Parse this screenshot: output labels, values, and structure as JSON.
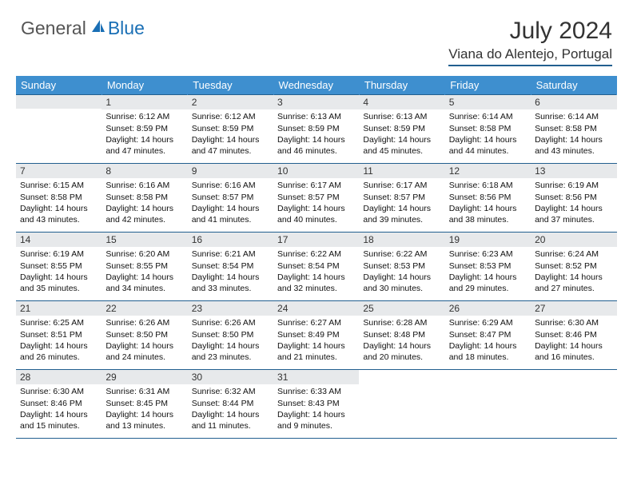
{
  "logo": {
    "part1": "General",
    "part2": "Blue"
  },
  "title": "July 2024",
  "location": "Viana do Alentejo, Portugal",
  "colors": {
    "header_bg": "#3e8fcf",
    "border": "#225f8f",
    "daynum_bg": "#e7e9eb",
    "logo_blue": "#1a6fb5"
  },
  "weekdays": [
    "Sunday",
    "Monday",
    "Tuesday",
    "Wednesday",
    "Thursday",
    "Friday",
    "Saturday"
  ],
  "weeks": [
    [
      null,
      {
        "n": "1",
        "sr": "6:12 AM",
        "ss": "8:59 PM",
        "dl": "14 hours and 47 minutes."
      },
      {
        "n": "2",
        "sr": "6:12 AM",
        "ss": "8:59 PM",
        "dl": "14 hours and 47 minutes."
      },
      {
        "n": "3",
        "sr": "6:13 AM",
        "ss": "8:59 PM",
        "dl": "14 hours and 46 minutes."
      },
      {
        "n": "4",
        "sr": "6:13 AM",
        "ss": "8:59 PM",
        "dl": "14 hours and 45 minutes."
      },
      {
        "n": "5",
        "sr": "6:14 AM",
        "ss": "8:58 PM",
        "dl": "14 hours and 44 minutes."
      },
      {
        "n": "6",
        "sr": "6:14 AM",
        "ss": "8:58 PM",
        "dl": "14 hours and 43 minutes."
      }
    ],
    [
      {
        "n": "7",
        "sr": "6:15 AM",
        "ss": "8:58 PM",
        "dl": "14 hours and 43 minutes."
      },
      {
        "n": "8",
        "sr": "6:16 AM",
        "ss": "8:58 PM",
        "dl": "14 hours and 42 minutes."
      },
      {
        "n": "9",
        "sr": "6:16 AM",
        "ss": "8:57 PM",
        "dl": "14 hours and 41 minutes."
      },
      {
        "n": "10",
        "sr": "6:17 AM",
        "ss": "8:57 PM",
        "dl": "14 hours and 40 minutes."
      },
      {
        "n": "11",
        "sr": "6:17 AM",
        "ss": "8:57 PM",
        "dl": "14 hours and 39 minutes."
      },
      {
        "n": "12",
        "sr": "6:18 AM",
        "ss": "8:56 PM",
        "dl": "14 hours and 38 minutes."
      },
      {
        "n": "13",
        "sr": "6:19 AM",
        "ss": "8:56 PM",
        "dl": "14 hours and 37 minutes."
      }
    ],
    [
      {
        "n": "14",
        "sr": "6:19 AM",
        "ss": "8:55 PM",
        "dl": "14 hours and 35 minutes."
      },
      {
        "n": "15",
        "sr": "6:20 AM",
        "ss": "8:55 PM",
        "dl": "14 hours and 34 minutes."
      },
      {
        "n": "16",
        "sr": "6:21 AM",
        "ss": "8:54 PM",
        "dl": "14 hours and 33 minutes."
      },
      {
        "n": "17",
        "sr": "6:22 AM",
        "ss": "8:54 PM",
        "dl": "14 hours and 32 minutes."
      },
      {
        "n": "18",
        "sr": "6:22 AM",
        "ss": "8:53 PM",
        "dl": "14 hours and 30 minutes."
      },
      {
        "n": "19",
        "sr": "6:23 AM",
        "ss": "8:53 PM",
        "dl": "14 hours and 29 minutes."
      },
      {
        "n": "20",
        "sr": "6:24 AM",
        "ss": "8:52 PM",
        "dl": "14 hours and 27 minutes."
      }
    ],
    [
      {
        "n": "21",
        "sr": "6:25 AM",
        "ss": "8:51 PM",
        "dl": "14 hours and 26 minutes."
      },
      {
        "n": "22",
        "sr": "6:26 AM",
        "ss": "8:50 PM",
        "dl": "14 hours and 24 minutes."
      },
      {
        "n": "23",
        "sr": "6:26 AM",
        "ss": "8:50 PM",
        "dl": "14 hours and 23 minutes."
      },
      {
        "n": "24",
        "sr": "6:27 AM",
        "ss": "8:49 PM",
        "dl": "14 hours and 21 minutes."
      },
      {
        "n": "25",
        "sr": "6:28 AM",
        "ss": "8:48 PM",
        "dl": "14 hours and 20 minutes."
      },
      {
        "n": "26",
        "sr": "6:29 AM",
        "ss": "8:47 PM",
        "dl": "14 hours and 18 minutes."
      },
      {
        "n": "27",
        "sr": "6:30 AM",
        "ss": "8:46 PM",
        "dl": "14 hours and 16 minutes."
      }
    ],
    [
      {
        "n": "28",
        "sr": "6:30 AM",
        "ss": "8:46 PM",
        "dl": "14 hours and 15 minutes."
      },
      {
        "n": "29",
        "sr": "6:31 AM",
        "ss": "8:45 PM",
        "dl": "14 hours and 13 minutes."
      },
      {
        "n": "30",
        "sr": "6:32 AM",
        "ss": "8:44 PM",
        "dl": "14 hours and 11 minutes."
      },
      {
        "n": "31",
        "sr": "6:33 AM",
        "ss": "8:43 PM",
        "dl": "14 hours and 9 minutes."
      },
      null,
      null,
      null
    ]
  ],
  "labels": {
    "sunrise": "Sunrise:",
    "sunset": "Sunset:",
    "daylight": "Daylight:"
  }
}
